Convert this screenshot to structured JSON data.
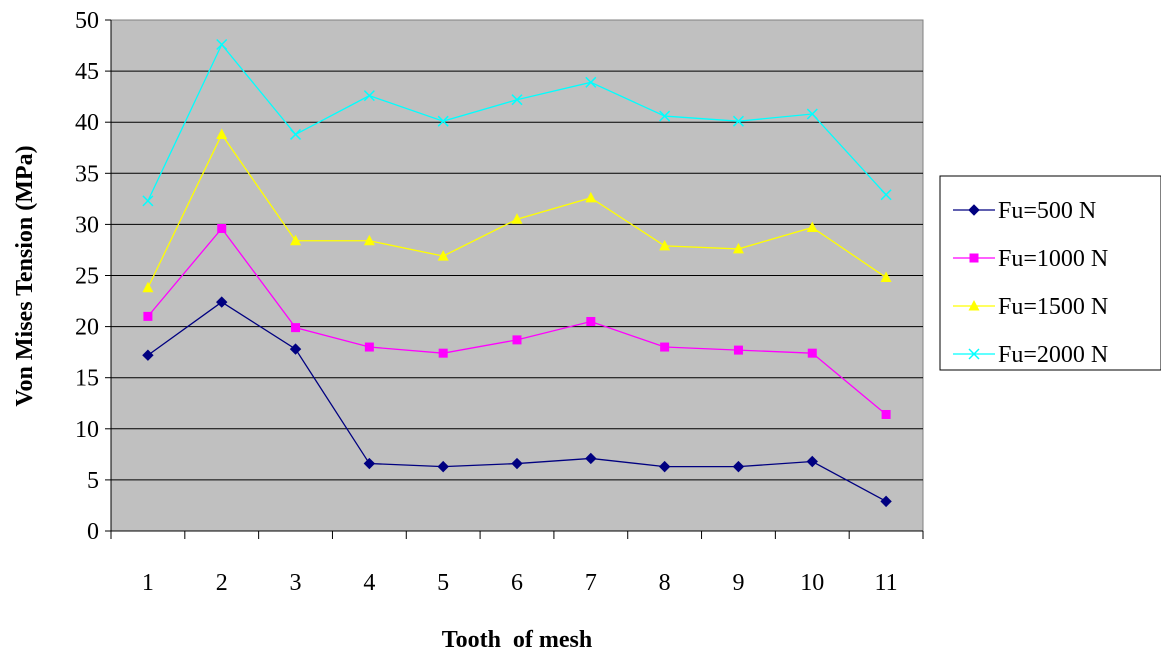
{
  "chart_data": {
    "type": "line",
    "title": "",
    "xlabel": "Tooth  of mesh",
    "ylabel": "Von Mises Tension (MPa)",
    "categories": [
      "1",
      "2",
      "3",
      "4",
      "5",
      "6",
      "7",
      "8",
      "9",
      "10",
      "11"
    ],
    "ylim": [
      0,
      50
    ],
    "yticks": [
      0,
      5,
      10,
      15,
      20,
      25,
      30,
      35,
      40,
      45,
      50
    ],
    "grid": true,
    "legend_position": "right",
    "plot_background": "#C0C0C0",
    "series": [
      {
        "name": "Fu=500 N",
        "color": "#000080",
        "marker": "diamond",
        "values": [
          17.2,
          22.4,
          17.8,
          6.6,
          6.3,
          6.6,
          7.1,
          6.3,
          6.3,
          6.8,
          2.9
        ]
      },
      {
        "name": "Fu=1000 N",
        "color": "#FF00FF",
        "marker": "square",
        "values": [
          21.0,
          29.6,
          19.9,
          18.0,
          17.4,
          18.7,
          20.5,
          18.0,
          17.7,
          17.4,
          11.4
        ]
      },
      {
        "name": "Fu=1500 N",
        "color": "#FFFF00",
        "marker": "triangle",
        "values": [
          23.8,
          38.8,
          28.4,
          28.4,
          26.9,
          30.5,
          32.6,
          27.9,
          27.6,
          29.7,
          24.8
        ]
      },
      {
        "name": "Fu=2000 N",
        "color": "#00FFFF",
        "marker": "x",
        "values": [
          32.3,
          47.6,
          38.8,
          42.6,
          40.1,
          42.2,
          43.9,
          40.6,
          40.1,
          40.8,
          32.9
        ]
      }
    ]
  }
}
